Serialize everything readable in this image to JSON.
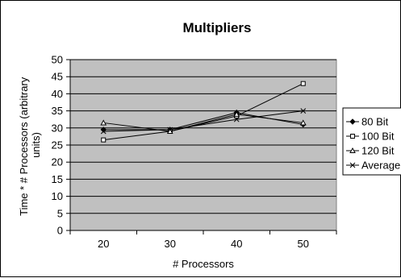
{
  "chart_data": {
    "type": "line",
    "title": "Multipliers",
    "xlabel": "# Processors",
    "ylabel": "Time * # Processors (arbitrary units)",
    "categories": [
      "20",
      "30",
      "40",
      "50"
    ],
    "ylim": [
      0,
      50
    ],
    "ytick_step": 5,
    "grid": true,
    "legend_position": "right",
    "plot_background": "#c0c0c0",
    "line_color": "#000000",
    "series": [
      {
        "name": "80 Bit",
        "marker": "diamond",
        "values": [
          29.5,
          29.5,
          34.5,
          31.0
        ]
      },
      {
        "name": "100 Bit",
        "marker": "square",
        "values": [
          26.5,
          29.0,
          33.5,
          43.0
        ]
      },
      {
        "name": "120 Bit",
        "marker": "triangle",
        "values": [
          31.5,
          29.0,
          34.0,
          31.5
        ]
      },
      {
        "name": "Average",
        "marker": "x",
        "values": [
          29.0,
          29.5,
          32.5,
          35.0
        ]
      }
    ]
  }
}
